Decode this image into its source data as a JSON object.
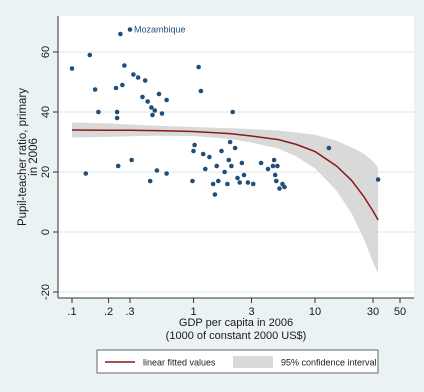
{
  "chart_data": {
    "type": "scatter",
    "title": "",
    "ylabel": "Pupil-teacher ratio, primary\nin 2006",
    "xlabel": "GDP per capita in 2006\n(1000 of constant 2000 US$)",
    "x_scale": "log",
    "xlim": [
      0.1,
      50
    ],
    "ylim": [
      -20,
      70
    ],
    "x_ticks": [
      {
        "value": 0.1,
        "label": ".1"
      },
      {
        "value": 0.2,
        "label": ".2"
      },
      {
        "value": 0.3,
        "label": ".3"
      },
      {
        "value": 1,
        "label": "1"
      },
      {
        "value": 3,
        "label": "3"
      },
      {
        "value": 10,
        "label": "10"
      },
      {
        "value": 30,
        "label": "30"
      },
      {
        "value": 50,
        "label": "50"
      }
    ],
    "y_ticks": [
      {
        "value": -20,
        "label": "-20"
      },
      {
        "value": 0,
        "label": "0"
      },
      {
        "value": 20,
        "label": "20"
      },
      {
        "value": 40,
        "label": "40"
      },
      {
        "value": 60,
        "label": "60"
      }
    ],
    "grid": "horizontal",
    "annotations": [
      {
        "text": "Mozambique",
        "x": 0.3,
        "y": 67.5
      }
    ],
    "points": [
      {
        "x": 0.1,
        "y": 54.5
      },
      {
        "x": 0.13,
        "y": 19.5
      },
      {
        "x": 0.14,
        "y": 59
      },
      {
        "x": 0.155,
        "y": 47.5
      },
      {
        "x": 0.165,
        "y": 40
      },
      {
        "x": 0.23,
        "y": 48
      },
      {
        "x": 0.235,
        "y": 40
      },
      {
        "x": 0.235,
        "y": 38
      },
      {
        "x": 0.24,
        "y": 22
      },
      {
        "x": 0.25,
        "y": 66
      },
      {
        "x": 0.26,
        "y": 49
      },
      {
        "x": 0.27,
        "y": 55.5
      },
      {
        "x": 0.3,
        "y": 67.5
      },
      {
        "x": 0.31,
        "y": 24
      },
      {
        "x": 0.32,
        "y": 52.5
      },
      {
        "x": 0.35,
        "y": 51.5
      },
      {
        "x": 0.38,
        "y": 45
      },
      {
        "x": 0.4,
        "y": 50.5
      },
      {
        "x": 0.42,
        "y": 43.5
      },
      {
        "x": 0.44,
        "y": 17
      },
      {
        "x": 0.45,
        "y": 41.5
      },
      {
        "x": 0.46,
        "y": 39
      },
      {
        "x": 0.48,
        "y": 40.5
      },
      {
        "x": 0.5,
        "y": 20.5
      },
      {
        "x": 0.52,
        "y": 46
      },
      {
        "x": 0.55,
        "y": 39.5
      },
      {
        "x": 0.6,
        "y": 19.5
      },
      {
        "x": 0.6,
        "y": 44
      },
      {
        "x": 0.98,
        "y": 17
      },
      {
        "x": 1.0,
        "y": 27
      },
      {
        "x": 1.02,
        "y": 29
      },
      {
        "x": 1.1,
        "y": 55
      },
      {
        "x": 1.15,
        "y": 47
      },
      {
        "x": 1.2,
        "y": 26
      },
      {
        "x": 1.25,
        "y": 21
      },
      {
        "x": 1.35,
        "y": 25
      },
      {
        "x": 1.45,
        "y": 16
      },
      {
        "x": 1.5,
        "y": 12.5
      },
      {
        "x": 1.55,
        "y": 22
      },
      {
        "x": 1.6,
        "y": 17
      },
      {
        "x": 1.7,
        "y": 27
      },
      {
        "x": 1.8,
        "y": 20
      },
      {
        "x": 1.9,
        "y": 16
      },
      {
        "x": 1.95,
        "y": 24
      },
      {
        "x": 2.0,
        "y": 30
      },
      {
        "x": 2.05,
        "y": 22
      },
      {
        "x": 2.1,
        "y": 40
      },
      {
        "x": 2.2,
        "y": 28
      },
      {
        "x": 2.3,
        "y": 18
      },
      {
        "x": 2.4,
        "y": 16.5
      },
      {
        "x": 2.5,
        "y": 23
      },
      {
        "x": 2.6,
        "y": 19
      },
      {
        "x": 2.8,
        "y": 16.5
      },
      {
        "x": 3.1,
        "y": 16
      },
      {
        "x": 3.6,
        "y": 23
      },
      {
        "x": 4.1,
        "y": 21
      },
      {
        "x": 4.5,
        "y": 22
      },
      {
        "x": 4.6,
        "y": 24
      },
      {
        "x": 4.7,
        "y": 19
      },
      {
        "x": 4.8,
        "y": 17
      },
      {
        "x": 4.9,
        "y": 22
      },
      {
        "x": 5.1,
        "y": 14.5
      },
      {
        "x": 5.4,
        "y": 16
      },
      {
        "x": 5.6,
        "y": 15
      },
      {
        "x": 13,
        "y": 28
      },
      {
        "x": 33,
        "y": 17.5
      }
    ],
    "fit_line": {
      "name": "linear fitted values",
      "x": [
        0.1,
        0.2,
        0.3,
        0.5,
        1,
        2,
        3,
        5,
        7,
        10,
        15,
        20,
        25,
        30,
        33
      ],
      "y": [
        34,
        33.95,
        33.9,
        33.8,
        33.5,
        32.8,
        32,
        30.8,
        29.2,
        26.8,
        22,
        17.2,
        12,
        7,
        4
      ]
    },
    "confidence_band": {
      "name": "95% confidence interval",
      "x": [
        0.1,
        0.2,
        0.3,
        0.5,
        1,
        2,
        3,
        5,
        7,
        10,
        15,
        20,
        25,
        30,
        33
      ],
      "upper": [
        36.5,
        36.2,
        35.8,
        35.4,
        35,
        34.6,
        34.3,
        33.8,
        33.2,
        32.4,
        30.4,
        28.2,
        26.2,
        23.6,
        21.5
      ],
      "lower": [
        31.5,
        31.7,
        31.9,
        32.1,
        32,
        31,
        29.8,
        27.8,
        25.2,
        21.2,
        13.8,
        6.2,
        -2,
        -10,
        -14
      ]
    },
    "legend": {
      "position": "bottom",
      "entries": [
        "linear fitted values",
        "95% confidence interval"
      ]
    },
    "colors": {
      "point": "#1f4e79",
      "fit_line": "#8b1a1a",
      "band": "#d9d9d9",
      "plot_bg": "#ffffff",
      "outer_bg": "#eaf2f3",
      "grid": "#dde8ea"
    }
  }
}
